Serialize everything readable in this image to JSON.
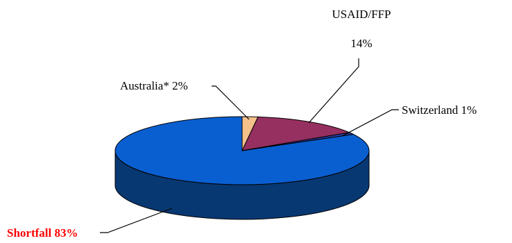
{
  "chart_data": {
    "type": "pie",
    "title": "",
    "style": "3d-pie",
    "slices": [
      {
        "label": "Shortfall",
        "value": 83,
        "display": "Shortfall 83%",
        "color": "#0a5fd0",
        "side_color": "#083872",
        "label_color": "#ff0000"
      },
      {
        "label": "Australia*",
        "value": 2,
        "display": "Australia* 2%",
        "color": "#f5c08c",
        "side_color": "#b88a5a",
        "label_color": "#000000"
      },
      {
        "label": "USAID/FFP",
        "value": 14,
        "display": "USAID/FFP",
        "display2": "14%",
        "color": "#963060",
        "side_color": "#5e1a3a",
        "label_color": "#000000"
      },
      {
        "label": "Switzerland",
        "value": 1,
        "display": "Switzerland 1%",
        "color": "#2a3a9a",
        "side_color": "#1a2466",
        "label_color": "#000000"
      }
    ]
  }
}
